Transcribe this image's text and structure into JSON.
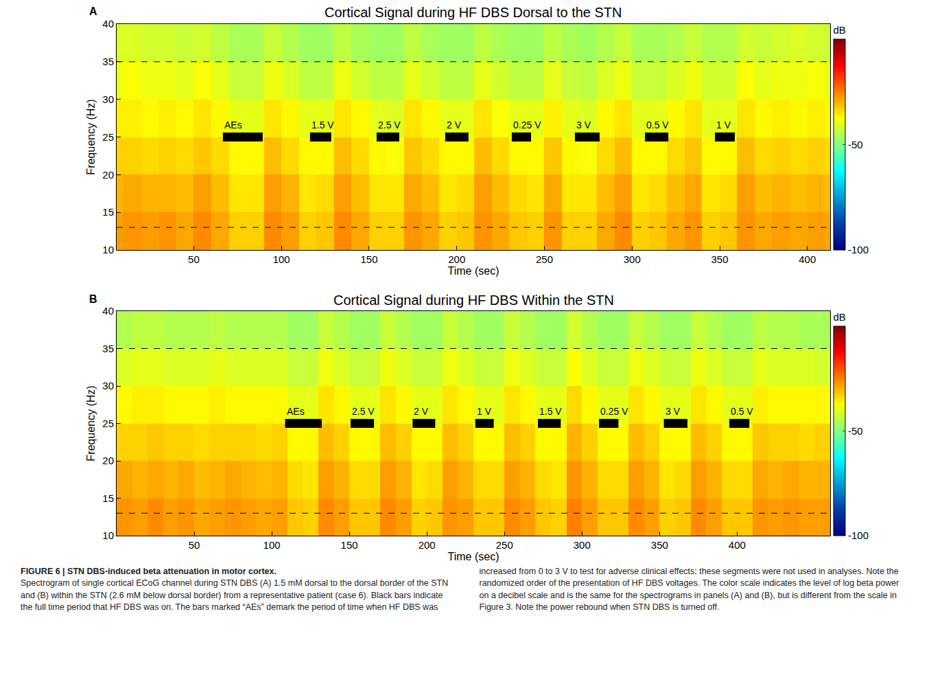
{
  "chart_data": [
    {
      "type": "heatmap",
      "panel": "A",
      "title": "Cortical Signal during HF DBS Dorsal to the STN",
      "x_label": "Time (sec)",
      "y_label": "Frequency (Hz)",
      "x": [
        0,
        10,
        20,
        30,
        40,
        50,
        60,
        70,
        80,
        90,
        100,
        110,
        120,
        130,
        140,
        150,
        160,
        170,
        180,
        190,
        200,
        210,
        220,
        230,
        240,
        250,
        260,
        270,
        280,
        290,
        300,
        310,
        320,
        330,
        340,
        350,
        360,
        370,
        380,
        390,
        400,
        410,
        420
      ],
      "y": [
        10,
        15,
        20,
        25,
        30,
        35,
        40
      ],
      "z": [
        [
          -28,
          -27,
          -28,
          -27,
          -29,
          -26,
          -29,
          -33,
          -33,
          -26,
          -28,
          -33,
          -32,
          -26,
          -29,
          -33,
          -33,
          -27,
          -29,
          -33,
          -32,
          -27,
          -29,
          -32,
          -33,
          -27,
          -33,
          -33,
          -29,
          -26,
          -33,
          -32,
          -29,
          -27,
          -33,
          -32,
          -27,
          -29,
          -28,
          -29,
          -28,
          -29
        ],
        [
          -30,
          -29,
          -30,
          -30,
          -31,
          -28,
          -31,
          -35,
          -35,
          -28,
          -30,
          -35,
          -34,
          -28,
          -31,
          -35,
          -35,
          -29,
          -31,
          -35,
          -34,
          -28,
          -31,
          -34,
          -35,
          -29,
          -35,
          -35,
          -31,
          -28,
          -35,
          -34,
          -31,
          -29,
          -35,
          -34,
          -28,
          -31,
          -30,
          -31,
          -30,
          -31
        ],
        [
          -33,
          -33,
          -34,
          -33,
          -34,
          -32,
          -34,
          -37,
          -37,
          -31,
          -34,
          -37,
          -37,
          -31,
          -34,
          -37,
          -38,
          -32,
          -34,
          -37,
          -37,
          -31,
          -34,
          -37,
          -37,
          -32,
          -37,
          -38,
          -34,
          -31,
          -37,
          -37,
          -34,
          -32,
          -37,
          -37,
          -31,
          -34,
          -33,
          -34,
          -33,
          -34
        ],
        [
          -36,
          -36,
          -37,
          -36,
          -37,
          -35,
          -37,
          -40,
          -40,
          -35,
          -37,
          -40,
          -40,
          -35,
          -37,
          -40,
          -41,
          -35,
          -37,
          -40,
          -40,
          -35,
          -38,
          -40,
          -40,
          -36,
          -40,
          -41,
          -37,
          -35,
          -40,
          -40,
          -37,
          -35,
          -40,
          -40,
          -35,
          -37,
          -36,
          -37,
          -36,
          -37
        ],
        [
          -39,
          -38,
          -39,
          -39,
          -40,
          -38,
          -40,
          -43,
          -43,
          -39,
          -41,
          -44,
          -44,
          -39,
          -42,
          -44,
          -44,
          -40,
          -42,
          -44,
          -44,
          -40,
          -42,
          -44,
          -44,
          -40,
          -43,
          -44,
          -41,
          -39,
          -43,
          -43,
          -41,
          -39,
          -42,
          -42,
          -38,
          -40,
          -39,
          -39,
          -38,
          -40
        ],
        [
          -41,
          -41,
          -42,
          -42,
          -43,
          -42,
          -44,
          -46,
          -46,
          -43,
          -45,
          -47,
          -47,
          -44,
          -46,
          -47,
          -47,
          -44,
          -46,
          -47,
          -47,
          -44,
          -46,
          -47,
          -47,
          -44,
          -46,
          -47,
          -45,
          -43,
          -46,
          -46,
          -45,
          -43,
          -45,
          -45,
          -42,
          -43,
          -42,
          -41,
          -42,
          -43
        ]
      ],
      "xlim": [
        6,
        413
      ],
      "xticks": [
        50,
        100,
        150,
        200,
        250,
        300,
        350,
        400
      ],
      "ylim": [
        10,
        40
      ],
      "yticks": [
        10,
        15,
        20,
        25,
        30,
        35,
        40
      ],
      "colorbar": {
        "title": "dB",
        "range": [
          -100,
          0
        ],
        "ticks": [
          -50,
          -100
        ]
      },
      "hlines": {
        "values": [
          13,
          35
        ],
        "line_style": "dash",
        "color": "#000000"
      },
      "bars": {
        "color": "#000000",
        "items": [
          {
            "label": "AEs",
            "start": 66.6,
            "end": 89.3,
            "y": 25
          },
          {
            "label": "1.5 V",
            "start": 116.3,
            "end": 128.4,
            "y": 25
          },
          {
            "label": "2.5 V",
            "start": 154.3,
            "end": 167.2,
            "y": 25
          },
          {
            "label": "2 V",
            "start": 193.4,
            "end": 206.7,
            "y": 25
          },
          {
            "label": "0.25 V",
            "start": 231.4,
            "end": 242.4,
            "y": 25
          },
          {
            "label": "3 V",
            "start": 267.4,
            "end": 281.5,
            "y": 25
          },
          {
            "label": "0.5 V",
            "start": 307.4,
            "end": 320.7,
            "y": 25
          },
          {
            "label": "1 V",
            "start": 347.3,
            "end": 358.6,
            "y": 25
          }
        ]
      }
    },
    {
      "type": "heatmap",
      "panel": "B",
      "title": "Cortical Signal during HF DBS Within the STN",
      "x_label": "Time (sec)",
      "y_label": "Frequency (Hz)",
      "x": [
        0,
        10,
        20,
        30,
        40,
        50,
        60,
        70,
        80,
        90,
        100,
        110,
        120,
        130,
        140,
        150,
        160,
        170,
        180,
        190,
        200,
        210,
        220,
        230,
        240,
        250,
        260,
        270,
        280,
        290,
        300,
        310,
        320,
        330,
        340,
        350,
        360,
        370,
        380,
        390,
        400,
        410,
        420,
        430,
        440,
        450,
        460
      ],
      "y": [
        10,
        15,
        20,
        25,
        30,
        35,
        40
      ],
      "z": [
        [
          -27,
          -28,
          -26,
          -28,
          -27,
          -29,
          -28,
          -27,
          -28,
          -29,
          -28,
          -32,
          -33,
          -26,
          -28,
          -32,
          -32,
          -26,
          -28,
          -33,
          -32,
          -27,
          -28,
          -32,
          -32,
          -26,
          -28,
          -32,
          -33,
          -25,
          -28,
          -32,
          -32,
          -26,
          -28,
          -33,
          -32,
          -26,
          -28,
          -32,
          -32,
          -27,
          -28,
          -27,
          -28,
          -28
        ],
        [
          -29,
          -30,
          -29,
          -30,
          -29,
          -31,
          -30,
          -29,
          -30,
          -31,
          -30,
          -34,
          -35,
          -28,
          -30,
          -34,
          -34,
          -28,
          -30,
          -35,
          -34,
          -28,
          -30,
          -34,
          -34,
          -28,
          -30,
          -34,
          -35,
          -27,
          -30,
          -34,
          -34,
          -28,
          -30,
          -35,
          -34,
          -28,
          -30,
          -34,
          -34,
          -29,
          -30,
          -29,
          -30,
          -30
        ],
        [
          -33,
          -33,
          -32,
          -33,
          -33,
          -34,
          -33,
          -33,
          -33,
          -34,
          -33,
          -37,
          -37,
          -31,
          -33,
          -37,
          -37,
          -31,
          -33,
          -37,
          -37,
          -31,
          -33,
          -37,
          -37,
          -31,
          -33,
          -37,
          -37,
          -30,
          -33,
          -37,
          -37,
          -31,
          -33,
          -37,
          -37,
          -31,
          -33,
          -37,
          -37,
          -32,
          -33,
          -33,
          -34,
          -33
        ],
        [
          -37,
          -36,
          -36,
          -37,
          -37,
          -37,
          -36,
          -37,
          -37,
          -37,
          -37,
          -40,
          -40,
          -35,
          -37,
          -40,
          -40,
          -35,
          -37,
          -40,
          -40,
          -35,
          -37,
          -40,
          -40,
          -35,
          -37,
          -40,
          -40,
          -34,
          -37,
          -40,
          -40,
          -35,
          -37,
          -40,
          -40,
          -35,
          -37,
          -40,
          -40,
          -36,
          -37,
          -37,
          -37,
          -37
        ],
        [
          -41,
          -40,
          -40,
          -41,
          -41,
          -41,
          -40,
          -41,
          -41,
          -41,
          -41,
          -43,
          -43,
          -39,
          -41,
          -43,
          -43,
          -39,
          -41,
          -43,
          -43,
          -39,
          -41,
          -43,
          -43,
          -39,
          -41,
          -43,
          -43,
          -38,
          -41,
          -43,
          -43,
          -39,
          -41,
          -43,
          -43,
          -39,
          -41,
          -43,
          -43,
          -40,
          -41,
          -41,
          -41,
          -42
        ],
        [
          -45,
          -44,
          -44,
          -45,
          -45,
          -45,
          -44,
          -45,
          -45,
          -45,
          -45,
          -47,
          -47,
          -43,
          -45,
          -47,
          -47,
          -43,
          -45,
          -47,
          -47,
          -43,
          -45,
          -47,
          -47,
          -43,
          -45,
          -47,
          -47,
          -42,
          -45,
          -47,
          -47,
          -43,
          -45,
          -47,
          -47,
          -43,
          -45,
          -47,
          -47,
          -44,
          -45,
          -45,
          -46,
          -46
        ]
      ],
      "xlim": [
        0,
        460
      ],
      "xticks": [
        50,
        100,
        150,
        200,
        250,
        300,
        350,
        400
      ],
      "ylim": [
        10,
        40
      ],
      "yticks": [
        10,
        15,
        20,
        25,
        30,
        35,
        40
      ],
      "colorbar": {
        "title": "dB",
        "range": [
          -100,
          0
        ],
        "ticks": [
          -50,
          -100
        ]
      },
      "hlines": {
        "values": [
          13,
          35
        ],
        "line_style": "dash",
        "color": "#000000"
      },
      "bars": {
        "color": "#000000",
        "items": [
          {
            "label": "AEs",
            "start": 108.6,
            "end": 132.2,
            "y": 25
          },
          {
            "label": "2.5 V",
            "start": 150.8,
            "end": 165.9,
            "y": 25
          },
          {
            "label": "2 V",
            "start": 190.8,
            "end": 205.4,
            "y": 25
          },
          {
            "label": "1 V",
            "start": 231.2,
            "end": 243.1,
            "y": 25
          },
          {
            "label": "1.5 V",
            "start": 271.6,
            "end": 286.3,
            "y": 25
          },
          {
            "label": "0.25 V",
            "start": 311.0,
            "end": 323.5,
            "y": 25
          },
          {
            "label": "3 V",
            "start": 352.8,
            "end": 368.0,
            "y": 25
          },
          {
            "label": "0.5 V",
            "start": 395.0,
            "end": 407.9,
            "y": 25
          }
        ]
      }
    }
  ],
  "caption": {
    "label": "FIGURE 6 | STN DBS-induced beta attenuation in motor cortex.",
    "text": "Spectrogram of single cortical ECoG channel during STN DBS (A) 1.5 mM dorsal to the dorsal border of the STN and (B) within the STN (2.6 mM below dorsal border) from a representative patient (case 6). Black bars indicate the full time period that HF DBS was on. The bars marked “AEs” demark the period of time when HF DBS was increased from 0 to 3 V to test for adverse clinical effects; these segments were not used in analyses. Note the randomized order of the presentation of HF DBS voltages. The color scale indicates the level of log beta power on a decibel scale and is the same for the spectrograms in panels (A) and (B), but is different from the scale in Figure 3. Note the power rebound when STN DBS is turned off."
  }
}
